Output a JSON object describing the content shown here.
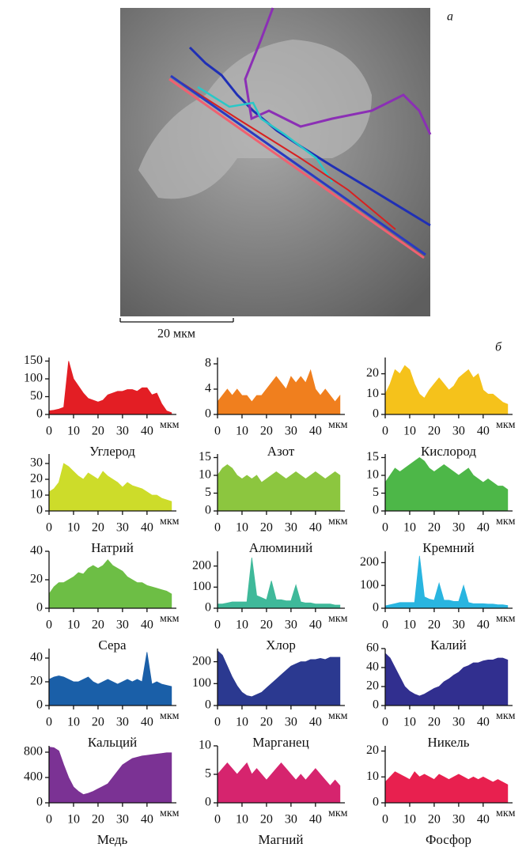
{
  "image_label": "а",
  "scale_bar": "20 мкм",
  "charts_label": "б",
  "chart_data": [
    {
      "type": "area",
      "title": "Углерод",
      "x_label": "мкм",
      "color": "#e31e24",
      "xlim": [
        0,
        52
      ],
      "xticks": [
        0,
        10,
        20,
        30,
        40
      ],
      "ylim": [
        0,
        160
      ],
      "yticks": [
        0,
        50,
        100,
        150
      ],
      "x": [
        0,
        2,
        4,
        6,
        8,
        10,
        12,
        14,
        16,
        18,
        20,
        22,
        24,
        26,
        28,
        30,
        32,
        34,
        36,
        38,
        40,
        42,
        44,
        46,
        48,
        50
      ],
      "values": [
        10,
        12,
        15,
        20,
        150,
        100,
        80,
        60,
        45,
        40,
        35,
        40,
        55,
        60,
        65,
        65,
        70,
        70,
        65,
        75,
        75,
        55,
        60,
        30,
        10,
        5
      ]
    },
    {
      "type": "area",
      "title": "Азот",
      "x_label": "мкм",
      "color": "#f07f1e",
      "xlim": [
        0,
        52
      ],
      "xticks": [
        0,
        10,
        20,
        30,
        40
      ],
      "ylim": [
        0,
        9
      ],
      "yticks": [
        0,
        4,
        8
      ],
      "x": [
        0,
        2,
        4,
        6,
        8,
        10,
        12,
        14,
        16,
        18,
        20,
        22,
        24,
        26,
        28,
        30,
        32,
        34,
        36,
        38,
        40,
        42,
        44,
        46,
        48,
        50
      ],
      "values": [
        2,
        3,
        4,
        3,
        4,
        3,
        3,
        2,
        3,
        3,
        4,
        5,
        6,
        5,
        4,
        6,
        5,
        6,
        5,
        7,
        4,
        3,
        4,
        3,
        2,
        3
      ]
    },
    {
      "type": "area",
      "title": "Кислород",
      "x_label": "мкм",
      "color": "#f5c21b",
      "xlim": [
        0,
        52
      ],
      "xticks": [
        0,
        10,
        20,
        30,
        40
      ],
      "ylim": [
        0,
        28
      ],
      "yticks": [
        0,
        10,
        20
      ],
      "x": [
        0,
        2,
        4,
        6,
        8,
        10,
        12,
        14,
        16,
        18,
        20,
        22,
        24,
        26,
        28,
        30,
        32,
        34,
        36,
        38,
        40,
        42,
        44,
        46,
        48,
        50
      ],
      "values": [
        10,
        15,
        22,
        20,
        24,
        22,
        15,
        10,
        8,
        12,
        15,
        18,
        15,
        12,
        14,
        18,
        20,
        22,
        18,
        20,
        12,
        10,
        10,
        8,
        6,
        5
      ]
    },
    {
      "type": "area",
      "title": "Натрий",
      "x_label": "мкм",
      "color": "#cddc2a",
      "xlim": [
        0,
        52
      ],
      "xticks": [
        0,
        10,
        20,
        30,
        40
      ],
      "ylim": [
        0,
        36
      ],
      "yticks": [
        0,
        10,
        20,
        30
      ],
      "x": [
        0,
        2,
        4,
        6,
        8,
        10,
        12,
        14,
        16,
        18,
        20,
        22,
        24,
        26,
        28,
        30,
        32,
        34,
        36,
        38,
        40,
        42,
        44,
        46,
        48,
        50
      ],
      "values": [
        12,
        14,
        18,
        30,
        28,
        25,
        22,
        20,
        24,
        22,
        20,
        25,
        22,
        20,
        18,
        15,
        18,
        16,
        15,
        14,
        12,
        10,
        10,
        8,
        7,
        6
      ]
    },
    {
      "type": "area",
      "title": "Алюминий",
      "x_label": "мкм",
      "color": "#8cc63f",
      "xlim": [
        0,
        52
      ],
      "xticks": [
        0,
        10,
        20,
        30,
        40
      ],
      "ylim": [
        0,
        16
      ],
      "yticks": [
        0,
        5,
        10,
        15
      ],
      "x": [
        0,
        2,
        4,
        6,
        8,
        10,
        12,
        14,
        16,
        18,
        20,
        22,
        24,
        26,
        28,
        30,
        32,
        34,
        36,
        38,
        40,
        42,
        44,
        46,
        48,
        50
      ],
      "values": [
        10,
        12,
        13,
        12,
        10,
        9,
        10,
        9,
        10,
        8,
        9,
        10,
        11,
        10,
        9,
        10,
        11,
        10,
        9,
        10,
        11,
        10,
        9,
        10,
        11,
        10
      ]
    },
    {
      "type": "area",
      "title": "Кремний",
      "x_label": "мкм",
      "color": "#4db748",
      "xlim": [
        0,
        52
      ],
      "xticks": [
        0,
        10,
        20,
        30,
        40
      ],
      "ylim": [
        0,
        16
      ],
      "yticks": [
        0,
        5,
        10,
        15
      ],
      "x": [
        0,
        2,
        4,
        6,
        8,
        10,
        12,
        14,
        16,
        18,
        20,
        22,
        24,
        26,
        28,
        30,
        32,
        34,
        36,
        38,
        40,
        42,
        44,
        46,
        48,
        50
      ],
      "values": [
        8,
        10,
        12,
        11,
        12,
        13,
        14,
        15,
        14,
        12,
        11,
        12,
        13,
        12,
        11,
        10,
        11,
        12,
        10,
        9,
        8,
        9,
        8,
        7,
        7,
        6
      ]
    },
    {
      "type": "area",
      "title": "Сера",
      "x_label": "мкм",
      "color": "#6dbe45",
      "xlim": [
        0,
        52
      ],
      "xticks": [
        0,
        10,
        20,
        30,
        40
      ],
      "ylim": [
        0,
        40
      ],
      "yticks": [
        0,
        20,
        40
      ],
      "x": [
        0,
        2,
        4,
        6,
        8,
        10,
        12,
        14,
        16,
        18,
        20,
        22,
        24,
        26,
        28,
        30,
        32,
        34,
        36,
        38,
        40,
        42,
        44,
        46,
        48,
        50
      ],
      "values": [
        10,
        15,
        18,
        18,
        20,
        22,
        25,
        24,
        28,
        30,
        28,
        30,
        34,
        30,
        28,
        26,
        22,
        20,
        18,
        18,
        16,
        15,
        14,
        13,
        12,
        10
      ]
    },
    {
      "type": "area",
      "title": "Хлор",
      "x_label": "мкм",
      "color": "#3fb99a",
      "xlim": [
        0,
        52
      ],
      "xticks": [
        0,
        10,
        20,
        30,
        40
      ],
      "ylim": [
        0,
        270
      ],
      "yticks": [
        0,
        100,
        200
      ],
      "x": [
        0,
        2,
        4,
        6,
        8,
        10,
        12,
        14,
        16,
        18,
        20,
        22,
        24,
        26,
        28,
        30,
        32,
        34,
        36,
        38,
        40,
        42,
        44,
        46,
        48,
        50
      ],
      "values": [
        20,
        20,
        25,
        30,
        30,
        30,
        30,
        240,
        60,
        50,
        40,
        130,
        40,
        40,
        35,
        35,
        110,
        30,
        25,
        25,
        20,
        20,
        20,
        20,
        15,
        15
      ]
    },
    {
      "type": "area",
      "title": "Калий",
      "x_label": "мкм",
      "color": "#29b5e0",
      "xlim": [
        0,
        52
      ],
      "xticks": [
        0,
        10,
        20,
        30,
        40
      ],
      "ylim": [
        0,
        250
      ],
      "yticks": [
        0,
        100,
        200
      ],
      "x": [
        0,
        2,
        4,
        6,
        8,
        10,
        12,
        14,
        16,
        18,
        20,
        22,
        24,
        26,
        28,
        30,
        32,
        34,
        36,
        38,
        40,
        42,
        44,
        46,
        48,
        50
      ],
      "values": [
        10,
        15,
        20,
        25,
        25,
        25,
        25,
        230,
        50,
        40,
        35,
        110,
        35,
        35,
        30,
        30,
        100,
        25,
        20,
        20,
        20,
        18,
        18,
        15,
        15,
        12
      ]
    },
    {
      "type": "area",
      "title": "Кальций",
      "x_label": "мкм",
      "color": "#1a5fa8",
      "xlim": [
        0,
        52
      ],
      "xticks": [
        0,
        10,
        20,
        30,
        40
      ],
      "ylim": [
        0,
        48
      ],
      "yticks": [
        0,
        20,
        40
      ],
      "x": [
        0,
        2,
        4,
        6,
        8,
        10,
        12,
        14,
        16,
        18,
        20,
        22,
        24,
        26,
        28,
        30,
        32,
        34,
        36,
        38,
        40,
        42,
        44,
        46,
        48,
        50
      ],
      "values": [
        22,
        24,
        25,
        24,
        22,
        20,
        20,
        22,
        24,
        20,
        18,
        20,
        22,
        20,
        18,
        20,
        22,
        20,
        22,
        20,
        45,
        18,
        20,
        18,
        17,
        16
      ]
    },
    {
      "type": "area",
      "title": "Марганец",
      "x_label": "мкм",
      "color": "#2b3990",
      "xlim": [
        0,
        52
      ],
      "xticks": [
        0,
        10,
        20,
        30,
        40
      ],
      "ylim": [
        0,
        260
      ],
      "yticks": [
        0,
        100,
        200
      ],
      "x": [
        0,
        2,
        4,
        6,
        8,
        10,
        12,
        14,
        16,
        18,
        20,
        22,
        24,
        26,
        28,
        30,
        32,
        34,
        36,
        38,
        40,
        42,
        44,
        46,
        48,
        50
      ],
      "values": [
        250,
        230,
        180,
        130,
        90,
        60,
        45,
        40,
        50,
        60,
        80,
        100,
        120,
        140,
        160,
        180,
        190,
        200,
        200,
        210,
        210,
        215,
        210,
        220,
        220,
        220
      ]
    },
    {
      "type": "area",
      "title": "Никель",
      "x_label": "мкм",
      "color": "#312f8f",
      "xlim": [
        0,
        52
      ],
      "xticks": [
        0,
        10,
        20,
        30,
        40
      ],
      "ylim": [
        0,
        60
      ],
      "yticks": [
        0,
        20,
        40,
        60
      ],
      "x": [
        0,
        2,
        4,
        6,
        8,
        10,
        12,
        14,
        16,
        18,
        20,
        22,
        24,
        26,
        28,
        30,
        32,
        34,
        36,
        38,
        40,
        42,
        44,
        46,
        48,
        50
      ],
      "values": [
        55,
        50,
        40,
        30,
        20,
        15,
        12,
        10,
        12,
        15,
        18,
        20,
        25,
        28,
        32,
        35,
        40,
        42,
        45,
        45,
        47,
        48,
        48,
        50,
        50,
        48
      ]
    },
    {
      "type": "area",
      "title": "Медь",
      "x_label": "мкм",
      "color": "#7b3294",
      "xlim": [
        0,
        52
      ],
      "xticks": [
        0,
        10,
        20,
        30,
        40
      ],
      "ylim": [
        0,
        900
      ],
      "yticks": [
        0,
        400,
        800
      ],
      "x": [
        0,
        2,
        4,
        6,
        8,
        10,
        12,
        14,
        16,
        18,
        20,
        22,
        24,
        26,
        28,
        30,
        32,
        34,
        36,
        38,
        40,
        42,
        44,
        46,
        48,
        50
      ],
      "values": [
        880,
        870,
        820,
        600,
        400,
        250,
        180,
        130,
        150,
        180,
        220,
        260,
        300,
        400,
        500,
        600,
        650,
        700,
        720,
        740,
        750,
        760,
        770,
        780,
        790,
        790
      ]
    },
    {
      "type": "area",
      "title": "Магний",
      "x_label": "мкм",
      "color": "#d6246e",
      "xlim": [
        0,
        52
      ],
      "xticks": [
        0,
        10,
        20,
        30,
        40
      ],
      "ylim": [
        0,
        10
      ],
      "yticks": [
        0,
        5,
        10
      ],
      "x": [
        0,
        2,
        4,
        6,
        8,
        10,
        12,
        14,
        16,
        18,
        20,
        22,
        24,
        26,
        28,
        30,
        32,
        34,
        36,
        38,
        40,
        42,
        44,
        46,
        48,
        50
      ],
      "values": [
        5,
        6,
        7,
        6,
        5,
        6,
        7,
        5,
        6,
        5,
        4,
        5,
        6,
        7,
        6,
        5,
        4,
        5,
        4,
        5,
        6,
        5,
        4,
        3,
        4,
        3
      ]
    },
    {
      "type": "area",
      "title": "Фосфор",
      "x_label": "мкм",
      "color": "#e8204f",
      "xlim": [
        0,
        52
      ],
      "xticks": [
        0,
        10,
        20,
        30,
        40
      ],
      "ylim": [
        0,
        22
      ],
      "yticks": [
        0,
        10,
        20
      ],
      "x": [
        0,
        2,
        4,
        6,
        8,
        10,
        12,
        14,
        16,
        18,
        20,
        22,
        24,
        26,
        28,
        30,
        32,
        34,
        36,
        38,
        40,
        42,
        44,
        46,
        48,
        50
      ],
      "values": [
        8,
        10,
        12,
        11,
        10,
        9,
        12,
        10,
        11,
        10,
        9,
        11,
        10,
        9,
        10,
        11,
        10,
        9,
        10,
        9,
        10,
        9,
        8,
        9,
        8,
        7
      ]
    }
  ]
}
